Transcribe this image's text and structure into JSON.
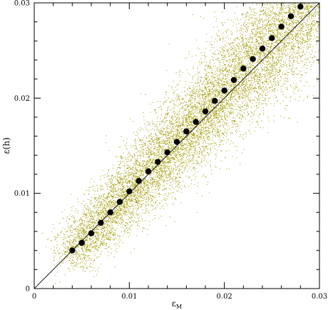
{
  "chart_data": {
    "type": "scatter",
    "xlabel": "ε",
    "xlabel_subscript": "M",
    "ylabel": "ε(h)",
    "xlim": [
      0,
      0.03
    ],
    "ylim": [
      0,
      0.03
    ],
    "x_ticks": [
      0,
      0.01,
      0.02,
      0.03
    ],
    "x_tick_labels": [
      "0",
      "0.01",
      "0.02",
      "0.03"
    ],
    "y_ticks": [
      0,
      0.01,
      0.02,
      0.03
    ],
    "y_tick_labels": [
      "0",
      "0.01",
      "0.02",
      "0.03"
    ],
    "grid": false,
    "point_cloud_color": "#a09a00",
    "marker_color": "#000000",
    "series": [
      {
        "kind": "binned-means",
        "x": [
          0.004,
          0.005,
          0.006,
          0.007,
          0.008,
          0.009,
          0.01,
          0.011,
          0.012,
          0.013,
          0.014,
          0.015,
          0.016,
          0.017,
          0.018,
          0.019,
          0.02,
          0.021,
          0.022,
          0.023,
          0.024,
          0.025,
          0.026,
          0.027,
          0.028
        ],
        "y": [
          0.004,
          0.0048,
          0.0058,
          0.0069,
          0.008,
          0.0091,
          0.0102,
          0.0113,
          0.0123,
          0.0133,
          0.0143,
          0.0154,
          0.0165,
          0.0175,
          0.0186,
          0.0197,
          0.0208,
          0.0219,
          0.0231,
          0.0241,
          0.0252,
          0.0263,
          0.0275,
          0.0286,
          0.0296
        ]
      },
      {
        "kind": "reference-line",
        "x": [
          0,
          0.03
        ],
        "y": [
          0,
          0.03
        ]
      }
    ]
  }
}
